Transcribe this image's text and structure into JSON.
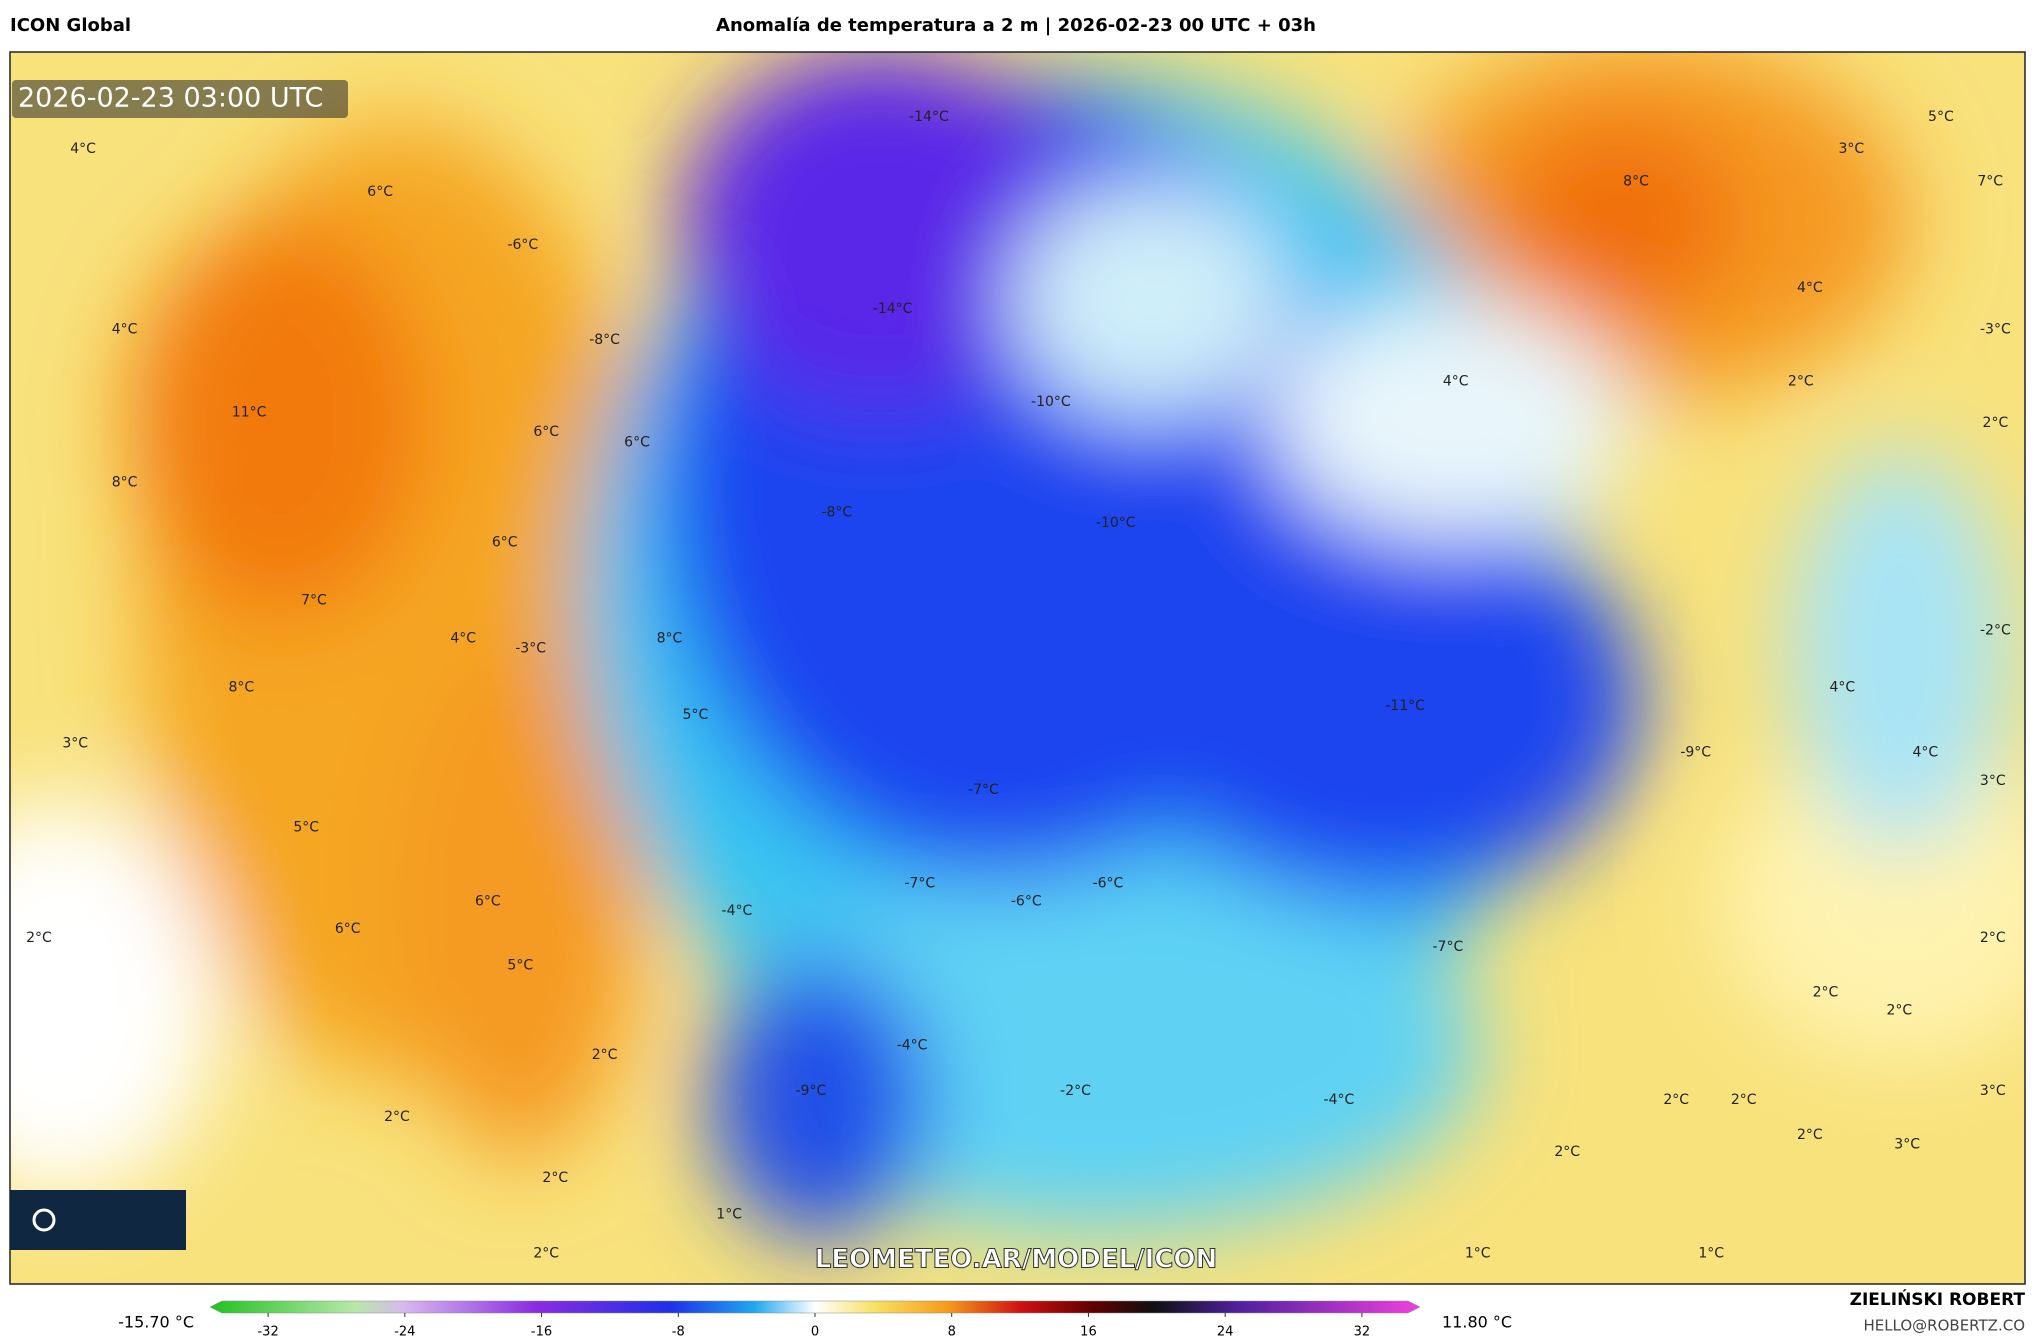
{
  "header": {
    "model": "ICON Global",
    "title": "Anomalía de temperatura a 2 m | 2026-02-23 00 UTC + 03h"
  },
  "map": {
    "timestamp": "2026-02-23 03:00 UTC",
    "watermark": "LEOMETEO.AR/MODEL/ICON",
    "labels": [
      "-14°C",
      "4°C",
      "6°C",
      "-6°C",
      "-14°C",
      "4°C",
      "-8°C",
      "8°C",
      "5°C",
      "3°C",
      "7°C",
      "4°C",
      "-3°C",
      "2°C",
      "2°C",
      "4°C",
      "11°C",
      "-10°C",
      "6°C",
      "6°C",
      "8°C",
      "-8°C",
      "-10°C",
      "6°C",
      "7°C",
      "4°C",
      "-3°C",
      "8°C",
      "-2°C",
      "8°C",
      "5°C",
      "-11°C",
      "4°C",
      "-9°C",
      "4°C",
      "3°C",
      "3°C",
      "-7°C",
      "5°C",
      "-7°C",
      "-6°C",
      "-6°C",
      "6°C",
      "-4°C",
      "6°C",
      "2°C",
      "-7°C",
      "2°C",
      "5°C",
      "2°C",
      "2°C",
      "-4°C",
      "2°C",
      "-2°C",
      "-9°C",
      "-4°C",
      "2°C",
      "2°C",
      "2°C",
      "3°C",
      "2°C",
      "3°C",
      "2°C",
      "2°C",
      "1°C",
      "2°C",
      "1°C",
      "1°C"
    ]
  },
  "colorbar": {
    "range": [
      -35.4,
      35.4
    ],
    "ticks": [
      -32,
      -24,
      -16,
      -8,
      0,
      8,
      16,
      24,
      32
    ],
    "min_label": "-15.70 °C",
    "max_label": "11.80 °C"
  },
  "credit": {
    "name": "ZIELIŃSKI ROBERT",
    "email": "HELLO@ROBERTZ.CO"
  }
}
